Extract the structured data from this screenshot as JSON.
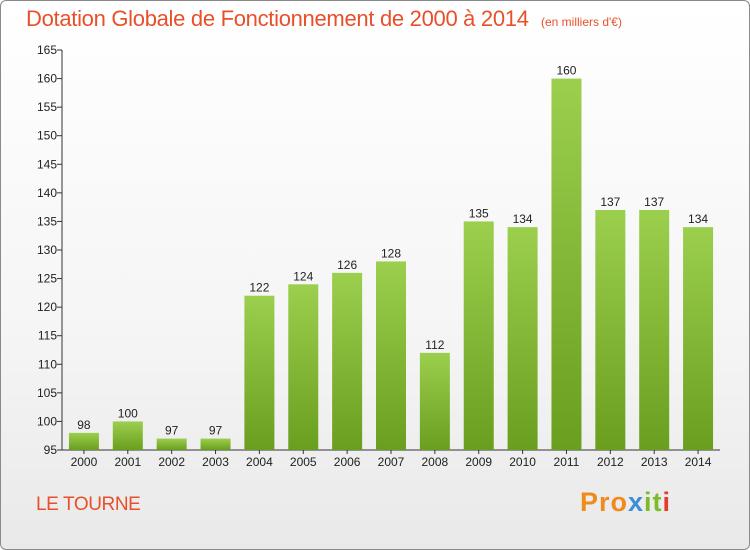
{
  "chart_data": {
    "type": "bar",
    "title": "Dotation Globale de Fonctionnement de 2000 à 2014",
    "subtitle": "(en milliers d'€)",
    "categories": [
      "2000",
      "2001",
      "2002",
      "2003",
      "2004",
      "2005",
      "2006",
      "2007",
      "2008",
      "2009",
      "2010",
      "2011",
      "2012",
      "2013",
      "2014"
    ],
    "values": [
      98,
      100,
      97,
      97,
      122,
      124,
      126,
      128,
      112,
      135,
      134,
      160,
      137,
      137,
      134
    ],
    "ylim": [
      95,
      165
    ],
    "yticks": [
      95,
      100,
      105,
      110,
      115,
      120,
      125,
      130,
      135,
      140,
      145,
      150,
      155,
      160,
      165
    ],
    "grid": false,
    "xlabel": "",
    "ylabel": "",
    "bar_color_top": "#9ccf4e",
    "bar_color_bottom": "#6a9e1e"
  },
  "place": "LE TOURNE",
  "logo": {
    "p1": "Pro",
    "p2": "x",
    "p3": "it",
    "p4": "i"
  }
}
